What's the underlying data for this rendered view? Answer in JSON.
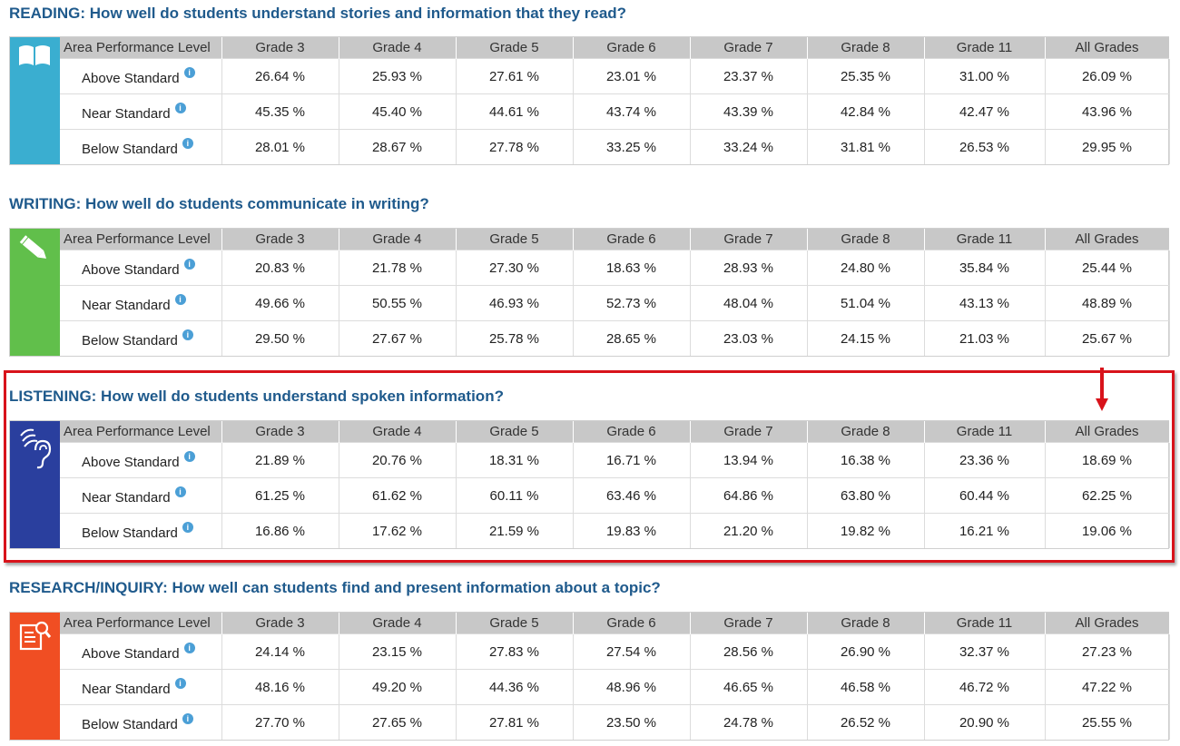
{
  "header_cols": [
    "Area Performance Level",
    "Grade 3",
    "Grade 4",
    "Grade 5",
    "Grade 6",
    "Grade 7",
    "Grade 8",
    "Grade 11",
    "All Grades"
  ],
  "sections": [
    {
      "key": "reading",
      "title": "READING: How well do students understand stories and information that they read?",
      "icon": "book-icon",
      "color": "#3aaed0",
      "rows": [
        {
          "level": "Above Standard",
          "values": [
            "26.64 %",
            "25.93 %",
            "27.61 %",
            "23.01 %",
            "23.37 %",
            "25.35 %",
            "31.00 %",
            "26.09 %"
          ]
        },
        {
          "level": "Near Standard",
          "values": [
            "45.35 %",
            "45.40 %",
            "44.61 %",
            "43.74 %",
            "43.39 %",
            "42.84 %",
            "42.47 %",
            "43.96 %"
          ]
        },
        {
          "level": "Below Standard",
          "values": [
            "28.01 %",
            "28.67 %",
            "27.78 %",
            "33.25 %",
            "33.24 %",
            "31.81 %",
            "26.53 %",
            "29.95 %"
          ]
        }
      ]
    },
    {
      "key": "writing",
      "title": "WRITING: How well do students communicate in writing?",
      "icon": "pencil-icon",
      "color": "#61bf4b",
      "rows": [
        {
          "level": "Above Standard",
          "values": [
            "20.83 %",
            "21.78 %",
            "27.30 %",
            "18.63 %",
            "28.93 %",
            "24.80 %",
            "35.84 %",
            "25.44 %"
          ]
        },
        {
          "level": "Near Standard",
          "values": [
            "49.66 %",
            "50.55 %",
            "46.93 %",
            "52.73 %",
            "48.04 %",
            "51.04 %",
            "43.13 %",
            "48.89 %"
          ]
        },
        {
          "level": "Below Standard",
          "values": [
            "29.50 %",
            "27.67 %",
            "25.78 %",
            "28.65 %",
            "23.03 %",
            "24.15 %",
            "21.03 %",
            "25.67 %"
          ]
        }
      ]
    },
    {
      "key": "listening",
      "title": "LISTENING: How well do students understand spoken information?",
      "icon": "ear-icon",
      "color": "#2a3f9e",
      "rows": [
        {
          "level": "Above Standard",
          "values": [
            "21.89 %",
            "20.76 %",
            "18.31 %",
            "16.71 %",
            "13.94 %",
            "16.38 %",
            "23.36 %",
            "18.69 %"
          ]
        },
        {
          "level": "Near Standard",
          "values": [
            "61.25 %",
            "61.62 %",
            "60.11 %",
            "63.46 %",
            "64.86 %",
            "63.80 %",
            "60.44 %",
            "62.25 %"
          ]
        },
        {
          "level": "Below Standard",
          "values": [
            "16.86 %",
            "17.62 %",
            "21.59 %",
            "19.83 %",
            "21.20 %",
            "19.82 %",
            "16.21 %",
            "19.06 %"
          ]
        }
      ]
    },
    {
      "key": "research",
      "title": "RESEARCH/INQUIRY: How well can students find and present information about a topic?",
      "icon": "research-icon",
      "color": "#f04e23",
      "rows": [
        {
          "level": "Above Standard",
          "values": [
            "24.14 %",
            "23.15 %",
            "27.83 %",
            "27.54 %",
            "28.56 %",
            "26.90 %",
            "32.37 %",
            "27.23 %"
          ]
        },
        {
          "level": "Near Standard",
          "values": [
            "48.16 %",
            "49.20 %",
            "44.36 %",
            "48.96 %",
            "46.65 %",
            "46.58 %",
            "46.72 %",
            "47.22 %"
          ]
        },
        {
          "level": "Below Standard",
          "values": [
            "27.70 %",
            "27.65 %",
            "27.81 %",
            "23.50 %",
            "24.78 %",
            "26.52 %",
            "20.90 %",
            "25.55 %"
          ]
        }
      ]
    }
  ],
  "highlight_color": "#d8131b",
  "info_icon": "info-icon"
}
